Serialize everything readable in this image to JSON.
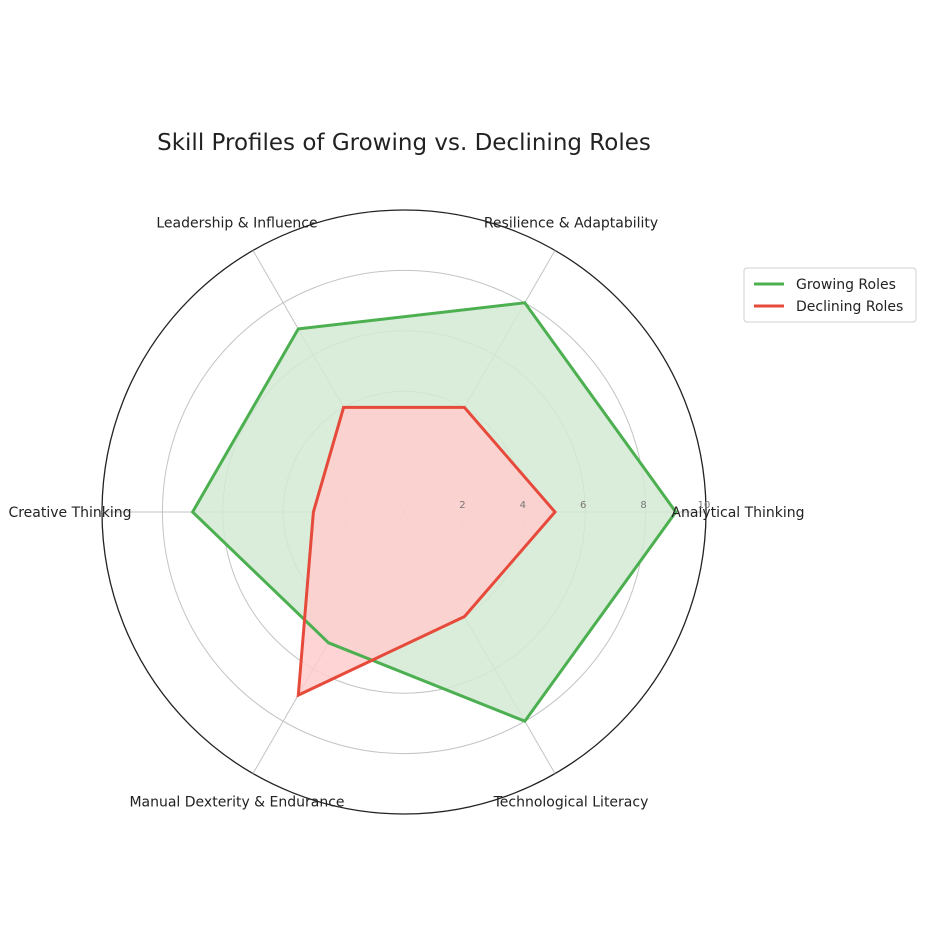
{
  "chart_data": {
    "type": "radar",
    "title": "Skill Profiles of Growing vs. Declining Roles",
    "categories": [
      "Analytical Thinking",
      "Resilience & Adaptability",
      "Leadership & Influence",
      "Creative Thinking",
      "Manual Dexterity & Endurance",
      "Technological Literacy"
    ],
    "rlim": [
      0,
      10
    ],
    "rticks": [
      2,
      4,
      6,
      8,
      10
    ],
    "rtick_labels": [
      "2",
      "4",
      "6",
      "8",
      "10"
    ],
    "grid": true,
    "legend": "top-right",
    "series": [
      {
        "name": "Growing Roles",
        "values": [
          9,
          8,
          7,
          7,
          5,
          8
        ],
        "color": "#4caf50",
        "fill": "#d4ead3"
      },
      {
        "name": "Declining Roles",
        "values": [
          5,
          4,
          4,
          3,
          7,
          4
        ],
        "color": "#e64a3b",
        "fill": "#ffcccc"
      }
    ]
  }
}
